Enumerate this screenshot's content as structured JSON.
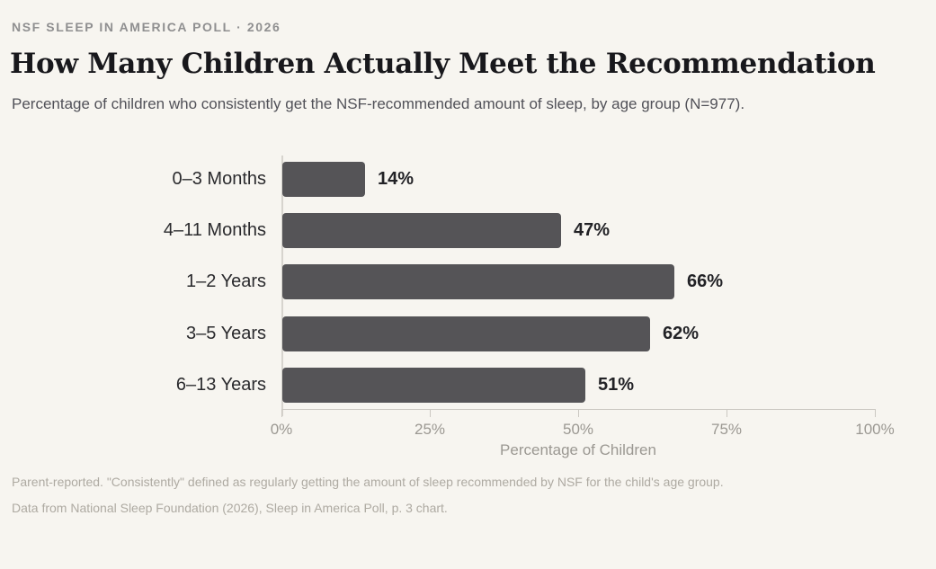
{
  "header": {
    "kicker": "NSF SLEEP IN AMERICA POLL · 2026",
    "title": "How Many Children Actually Meet the Recommendation",
    "subtitle": "Percentage of children who consistently get the NSF-recommended amount of sleep, by age group (N=977)."
  },
  "chart_data": {
    "type": "bar",
    "orientation": "horizontal",
    "title": "How Many Children Actually Meet the Recommendation",
    "categories": [
      "0–3 Months",
      "4–11 Months",
      "1–2 Years",
      "3–5 Years",
      "6–13 Years"
    ],
    "values": [
      14,
      47,
      66,
      62,
      51
    ],
    "value_labels": [
      "14%",
      "47%",
      "66%",
      "62%",
      "51%"
    ],
    "xlabel": "Percentage of Children",
    "ylabel": "",
    "xlim": [
      0,
      100
    ],
    "x_ticks": [
      0,
      25,
      50,
      75,
      100
    ],
    "x_tick_labels": [
      "0%",
      "25%",
      "50%",
      "75%",
      "100%"
    ],
    "grid": false,
    "legend": false,
    "bar_color": "#555457"
  },
  "footnotes": [
    "Parent-reported. \"Consistently\" defined as regularly getting the amount of sleep recommended by NSF for the child's age group.",
    "Data from National Sleep Foundation (2026), Sleep in America Poll, p. 3 chart."
  ],
  "colors": {
    "background": "#f7f5f0",
    "bar": "#555457",
    "title_text": "#18181c",
    "kicker_text": "#8f8f90",
    "subtitle_text": "#515158",
    "category_text": "#2a2a2d",
    "value_text": "#222226",
    "axis_text": "#9b9892",
    "axis_line": "#cbc8c2",
    "footnote_text": "#aeaaa2"
  }
}
